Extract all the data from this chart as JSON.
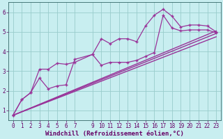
{
  "bg_color": "#c8eef0",
  "grid_color": "#99cccc",
  "line_color": "#993399",
  "xlabel": "Windchill (Refroidissement éolien,°C)",
  "xlabel_fontsize": 6.5,
  "tick_fontsize": 5.5,
  "xlim": [
    -0.5,
    23.5
  ],
  "ylim": [
    0.5,
    6.5
  ],
  "xticks": [
    0,
    1,
    2,
    3,
    4,
    5,
    6,
    7,
    9,
    10,
    11,
    12,
    13,
    14,
    15,
    16,
    17,
    18,
    19,
    20,
    21,
    22,
    23
  ],
  "yticks": [
    1,
    2,
    3,
    4,
    5,
    6
  ],
  "series1_x": [
    0,
    1,
    2,
    3,
    4,
    5,
    6,
    7,
    9,
    10,
    11,
    12,
    13,
    14,
    15,
    16,
    17,
    18,
    19,
    20,
    21,
    22,
    23
  ],
  "series1_y": [
    0.75,
    1.55,
    1.9,
    2.65,
    2.1,
    2.25,
    2.3,
    3.6,
    3.85,
    4.65,
    4.4,
    4.65,
    4.65,
    4.5,
    5.3,
    5.85,
    6.15,
    5.8,
    5.25,
    5.35,
    5.35,
    5.3,
    5.0
  ],
  "series2_x": [
    0,
    1,
    2,
    3,
    4,
    5,
    6,
    7,
    9,
    10,
    11,
    12,
    13,
    14,
    15,
    16,
    17,
    18,
    19,
    20,
    21,
    22,
    23
  ],
  "series2_y": [
    0.75,
    1.55,
    1.9,
    3.1,
    3.1,
    3.4,
    3.35,
    3.45,
    3.85,
    3.3,
    3.45,
    3.45,
    3.45,
    3.55,
    3.75,
    3.95,
    5.85,
    5.2,
    5.05,
    5.1,
    5.1,
    5.1,
    4.95
  ],
  "trend1_x": [
    0,
    23
  ],
  "trend1_y": [
    0.75,
    5.05
  ],
  "trend2_x": [
    0,
    23
  ],
  "trend2_y": [
    0.75,
    4.92
  ],
  "trend3_x": [
    0,
    23
  ],
  "trend3_y": [
    0.75,
    4.75
  ]
}
